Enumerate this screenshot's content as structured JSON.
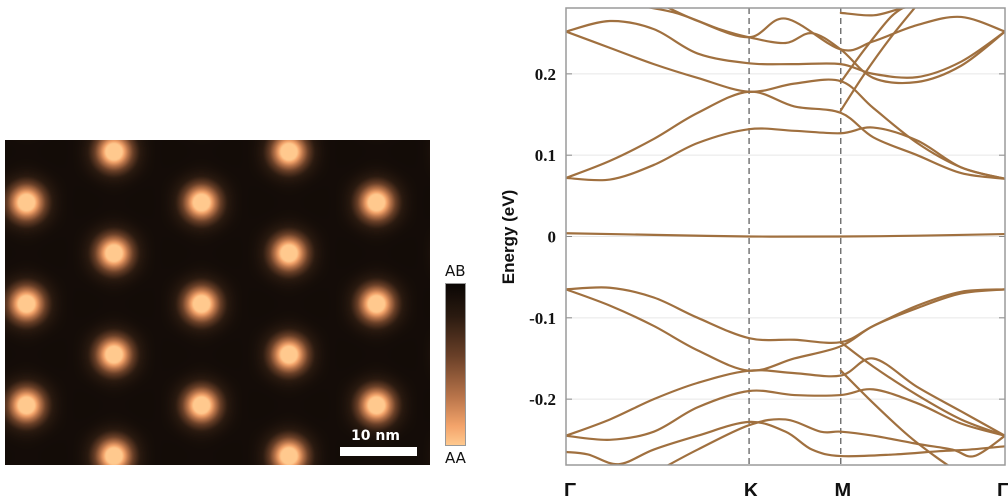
{
  "left_panel": {
    "title": "",
    "scalebar_label": "10 nm",
    "colorbar": {
      "top_label": "AB",
      "bottom_label": "AA",
      "colors": [
        "#0a0604",
        "#2a1a10",
        "#6a4028",
        "#b8744a",
        "#f3a36a",
        "#ffc98e"
      ]
    },
    "lattice": {
      "rows": 7,
      "spots_per_row": [
        2,
        3,
        2,
        3,
        2,
        3,
        2
      ],
      "spot_color": "#ffb57c",
      "background_color": "#2a1a10"
    }
  },
  "chart_data": {
    "type": "line",
    "title": "",
    "xlabel": "",
    "ylabel": "Energy (eV)",
    "ylim": [
      -0.281,
      0.281
    ],
    "yticks": [
      0.2,
      0.1,
      0,
      -0.1,
      -0.2
    ],
    "ytick_labels": [
      "0.2",
      "0.1",
      "0",
      "-0.1",
      "-0.2"
    ],
    "grid": true,
    "xticks": [
      0,
      0.417,
      0.626,
      1.0
    ],
    "xtick_labels": [
      "Γ",
      "K",
      "M",
      "Γ"
    ],
    "vlines": [
      0.417,
      0.626
    ],
    "line_color": "#a0703f",
    "series": [
      {
        "name": "band-c1",
        "x": [
          0,
          0.1,
          0.2,
          0.3,
          0.417,
          0.52,
          0.626,
          0.7,
          0.8,
          0.9,
          1.0
        ],
        "y": [
          0.072,
          0.07,
          0.088,
          0.115,
          0.132,
          0.13,
          0.127,
          0.134,
          0.118,
          0.085,
          0.071
        ]
      },
      {
        "name": "band-c2",
        "x": [
          0,
          0.1,
          0.2,
          0.3,
          0.417,
          0.52,
          0.626,
          0.7,
          0.8,
          0.9,
          1.0
        ],
        "y": [
          0.072,
          0.093,
          0.12,
          0.152,
          0.178,
          0.16,
          0.152,
          0.122,
          0.1,
          0.078,
          0.071
        ]
      },
      {
        "name": "band-c3",
        "x": [
          0,
          0.1,
          0.2,
          0.3,
          0.417,
          0.52,
          0.626,
          0.7,
          0.8,
          0.9,
          1.0
        ],
        "y": [
          0.252,
          0.232,
          0.212,
          0.195,
          0.178,
          0.188,
          0.191,
          0.158,
          0.115,
          0.085,
          0.071
        ]
      },
      {
        "name": "band-c4",
        "x": [
          0,
          0.1,
          0.2,
          0.3,
          0.417,
          0.52,
          0.626,
          0.7,
          0.8,
          0.9,
          1.0
        ],
        "y": [
          0.252,
          0.265,
          0.255,
          0.225,
          0.213,
          0.212,
          0.212,
          0.2,
          0.196,
          0.215,
          0.252
        ]
      },
      {
        "name": "band-c5",
        "x": [
          0.15,
          0.25,
          0.35,
          0.417,
          0.5,
          0.56,
          0.626,
          0.7,
          0.8,
          0.9,
          1.0
        ],
        "y": [
          0.285,
          0.275,
          0.255,
          0.245,
          0.238,
          0.25,
          0.23,
          0.195,
          0.19,
          0.21,
          0.252
        ]
      },
      {
        "name": "band-c6",
        "x": [
          0.2,
          0.3,
          0.417,
          0.5,
          0.626,
          0.7,
          0.8,
          0.9,
          1.0
        ],
        "y": [
          0.29,
          0.265,
          0.245,
          0.268,
          0.23,
          0.24,
          0.26,
          0.27,
          0.252
        ]
      },
      {
        "name": "band-c7",
        "x": [
          0.626,
          0.68,
          0.74,
          0.8
        ],
        "y": [
          0.155,
          0.2,
          0.245,
          0.285
        ]
      },
      {
        "name": "band-c8",
        "x": [
          0.626,
          0.68,
          0.74,
          0.78
        ],
        "y": [
          0.19,
          0.23,
          0.27,
          0.285
        ]
      },
      {
        "name": "band-c9",
        "x": [
          0.626,
          0.7,
          0.76,
          0.8
        ],
        "y": [
          0.275,
          0.272,
          0.28,
          0.285
        ]
      },
      {
        "name": "band-flat",
        "x": [
          0,
          0.2,
          0.417,
          0.626,
          0.8,
          1.0
        ],
        "y": [
          0.004,
          0.002,
          0.0,
          0.0,
          0.001,
          0.003
        ]
      },
      {
        "name": "band-v1",
        "x": [
          0,
          0.1,
          0.2,
          0.3,
          0.417,
          0.52,
          0.626,
          0.7,
          0.8,
          0.9,
          1.0
        ],
        "y": [
          -0.065,
          -0.063,
          -0.075,
          -0.1,
          -0.125,
          -0.127,
          -0.13,
          -0.11,
          -0.085,
          -0.068,
          -0.065
        ]
      },
      {
        "name": "band-v2",
        "x": [
          0,
          0.1,
          0.2,
          0.3,
          0.417,
          0.52,
          0.626,
          0.7,
          0.8,
          0.9,
          1.0
        ],
        "y": [
          -0.065,
          -0.085,
          -0.11,
          -0.14,
          -0.165,
          -0.15,
          -0.135,
          -0.11,
          -0.088,
          -0.07,
          -0.065
        ]
      },
      {
        "name": "band-v3",
        "x": [
          0,
          0.1,
          0.2,
          0.3,
          0.417,
          0.52,
          0.626,
          0.7,
          0.8,
          0.9,
          1.0
        ],
        "y": [
          -0.245,
          -0.225,
          -0.2,
          -0.18,
          -0.165,
          -0.168,
          -0.171,
          -0.15,
          -0.185,
          -0.215,
          -0.245
        ]
      },
      {
        "name": "band-v4",
        "x": [
          0,
          0.1,
          0.2,
          0.3,
          0.417,
          0.52,
          0.626,
          0.7,
          0.8,
          0.9,
          1.0
        ],
        "y": [
          -0.245,
          -0.25,
          -0.24,
          -0.21,
          -0.19,
          -0.195,
          -0.195,
          -0.188,
          -0.205,
          -0.23,
          -0.245
        ]
      },
      {
        "name": "band-v5",
        "x": [
          0,
          0.05,
          0.12,
          0.2,
          0.3,
          0.417,
          0.5,
          0.56,
          0.626,
          0.75,
          0.85,
          0.92,
          1.0
        ],
        "y": [
          -0.265,
          -0.268,
          -0.28,
          -0.262,
          -0.245,
          -0.228,
          -0.24,
          -0.262,
          -0.27,
          -0.268,
          -0.264,
          -0.262,
          -0.258
        ]
      },
      {
        "name": "band-v6",
        "x": [
          0.22,
          0.3,
          0.417,
          0.5,
          0.58,
          0.626,
          0.7,
          0.8,
          0.88,
          0.93,
          1.0
        ],
        "y": [
          -0.285,
          -0.262,
          -0.232,
          -0.225,
          -0.24,
          -0.24,
          -0.245,
          -0.255,
          -0.262,
          -0.27,
          -0.245
        ]
      },
      {
        "name": "band-v7",
        "x": [
          0.626,
          0.7,
          0.78,
          0.84,
          0.88
        ],
        "y": [
          -0.165,
          -0.205,
          -0.245,
          -0.27,
          -0.285
        ]
      },
      {
        "name": "band-v8",
        "x": [
          0.626,
          0.7,
          0.8,
          0.9,
          1.0
        ],
        "y": [
          -0.13,
          -0.16,
          -0.195,
          -0.225,
          -0.245
        ]
      }
    ]
  }
}
